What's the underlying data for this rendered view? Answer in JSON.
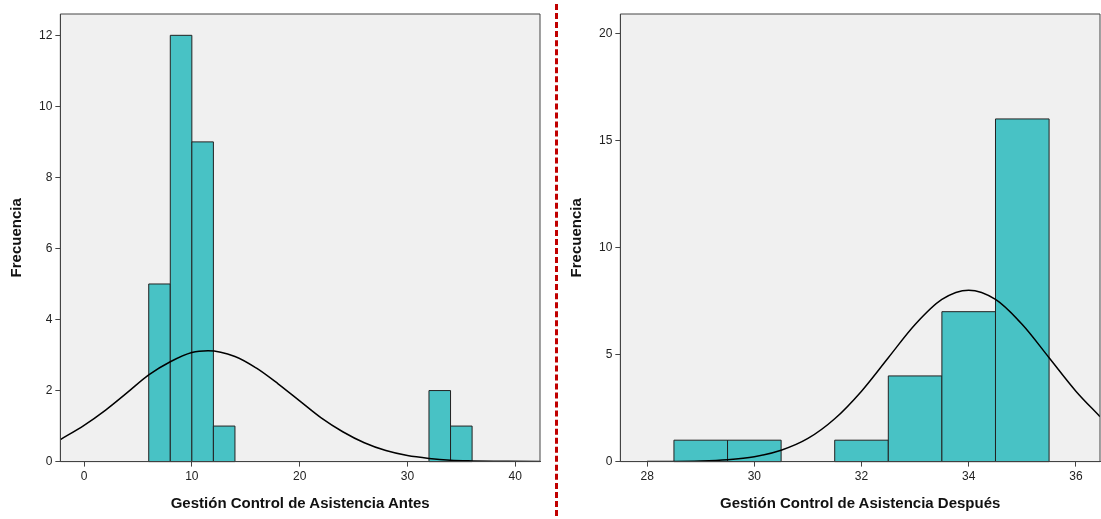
{
  "chart_data": [
    {
      "type": "histogram",
      "xlabel": "Gestión Control de Asistencia Antes",
      "ylabel": "Frecuencia",
      "bins": [
        6,
        8,
        10,
        12,
        14,
        16,
        18,
        20,
        22,
        24,
        26,
        28,
        30,
        32,
        34,
        36
      ],
      "values": [
        5,
        12,
        9,
        1,
        0,
        0,
        0,
        0,
        0,
        0,
        0,
        0,
        0,
        2,
        1
      ],
      "color": "#48c2c5",
      "xlim": [
        -2.2,
        42.3
      ],
      "xticks": [
        0,
        10,
        20,
        30,
        40
      ],
      "ylim": [
        0,
        12.6
      ],
      "yticks": [
        0,
        2,
        4,
        6,
        8,
        10,
        12
      ],
      "grid": false,
      "series": [
        {
          "type": "line",
          "color": "#000000",
          "x": [
            -2.2,
            0,
            2,
            4,
            6,
            8,
            10,
            11.5,
            14,
            16,
            18,
            20,
            22,
            24,
            26,
            28,
            30,
            32,
            34,
            36,
            38,
            42.3
          ],
          "values": [
            0.62,
            1.02,
            1.45,
            1.94,
            2.44,
            2.81,
            3.07,
            3.12,
            2.96,
            2.63,
            2.19,
            1.71,
            1.23,
            0.84,
            0.53,
            0.31,
            0.17,
            0.09,
            0.04,
            0.02,
            0.01,
            0
          ]
        }
      ]
    },
    {
      "type": "histogram",
      "xlabel": "Gestión Control de Asistencia Después",
      "ylabel": "Frecuencia",
      "bins": [
        28.5,
        29.5,
        30.5,
        31.5,
        32.5,
        33.5,
        34.5,
        35.5
      ],
      "values": [
        1,
        1,
        0,
        1,
        4,
        7,
        16
      ],
      "color": "#48c2c5",
      "xlim": [
        27.5,
        36.45
      ],
      "xticks": [
        28,
        30,
        32,
        34,
        36
      ],
      "ylim": [
        0,
        20.9
      ],
      "yticks": [
        0,
        5,
        10,
        15,
        20
      ],
      "grid": false,
      "series": [
        {
          "type": "line",
          "color": "#000000",
          "x": [
            28,
            29,
            29.5,
            30,
            30.5,
            31,
            31.5,
            32,
            32.5,
            33,
            33.5,
            34,
            34.5,
            35,
            35.5,
            36,
            36.45
          ],
          "values": [
            0,
            0.03,
            0.09,
            0.23,
            0.53,
            1.08,
            2.0,
            3.29,
            4.85,
            6.4,
            7.57,
            8,
            7.57,
            6.4,
            4.85,
            3.29,
            2.1
          ]
        }
      ]
    }
  ]
}
